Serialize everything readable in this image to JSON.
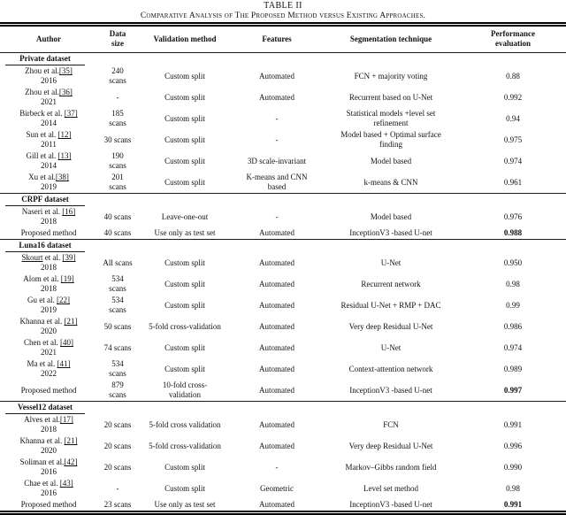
{
  "table": {
    "label": "TABLE II",
    "caption": "Comparative Analysis of The Proposed Method versus Existing Approaches.",
    "columns": [
      "Author",
      "Data\nsize",
      "Validation method",
      "Features",
      "Segmentation technique",
      "Performance\nevaluation"
    ],
    "sections": [
      {
        "name": "Private dataset",
        "rows": [
          {
            "author_parts": [
              {
                "t": "Zhou et al.",
                "u": false
              },
              {
                "t": "[35]",
                "u": true
              }
            ],
            "year": "2016",
            "data_size": "240\nscans",
            "validation": "Custom split",
            "features": "Automated",
            "technique": "FCN + majority voting",
            "performance": "0.88",
            "perf_bold": false
          },
          {
            "author_parts": [
              {
                "t": "Zhou et al.",
                "u": false
              },
              {
                "t": "[36]",
                "u": true
              }
            ],
            "year": "2021",
            "data_size": "-",
            "validation": "Custom split",
            "features": "Automated",
            "technique": "Recurrent based on U-Net",
            "performance": "0.992",
            "perf_bold": false
          },
          {
            "author_parts": [
              {
                "t": "Birbeck et al. ",
                "u": false
              },
              {
                "t": "[37]",
                "u": true
              }
            ],
            "year": "2014",
            "data_size": "185\nscans",
            "validation": "Custom split",
            "features": "-",
            "technique": "Statistical models +level set\nrefinement",
            "performance": "0.94",
            "perf_bold": false
          },
          {
            "author_parts": [
              {
                "t": "Sun et al. ",
                "u": false
              },
              {
                "t": "[12]",
                "u": true
              }
            ],
            "year": "2011",
            "data_size": "30 scans",
            "validation": "Custom split",
            "features": "-",
            "technique": "Model based + Optimal surface\nfinding",
            "performance": "0.975",
            "perf_bold": false
          },
          {
            "author_parts": [
              {
                "t": "Gill et al. ",
                "u": false
              },
              {
                "t": "[13]",
                "u": true
              }
            ],
            "year": "2014",
            "data_size": "190\nscans",
            "validation": "Custom split",
            "features": "3D scale-invariant",
            "technique": "Model based",
            "performance": "0.974",
            "perf_bold": false
          },
          {
            "author_parts": [
              {
                "t": "Xu et al.",
                "u": false
              },
              {
                "t": "[38]",
                "u": true
              }
            ],
            "year": "2019",
            "data_size": "201\nscans",
            "validation": "Custom split",
            "features": "K-means and CNN\nbased",
            "technique": "k-means & CNN",
            "performance": "0.961",
            "perf_bold": false
          }
        ]
      },
      {
        "name": "CRPF dataset",
        "rows": [
          {
            "author_parts": [
              {
                "t": "Naseri et al. ",
                "u": false
              },
              {
                "t": "[16]",
                "u": true
              }
            ],
            "year": "2018",
            "data_size": "40 scans",
            "validation": "Leave-one-out",
            "features": "-",
            "technique": "Model based",
            "performance": "0.976",
            "perf_bold": false
          },
          {
            "author_parts": [
              {
                "t": "Proposed method",
                "u": false
              }
            ],
            "year": "",
            "data_size": "40 scans",
            "validation": "Use only as test set",
            "features": "Automated",
            "technique": "InceptionV3 -based U-net",
            "performance": "0.988",
            "perf_bold": true
          }
        ]
      },
      {
        "name": "Luna16 dataset",
        "rows": [
          {
            "author_parts": [
              {
                "t": "Skourt",
                "u": true
              },
              {
                "t": " et al. ",
                "u": false
              },
              {
                "t": "[39]",
                "u": true
              }
            ],
            "year": "2018",
            "data_size": "All scans",
            "validation": "Custom split",
            "features": "Automated",
            "technique": "U-Net",
            "performance": "0.950",
            "perf_bold": false
          },
          {
            "author_parts": [
              {
                "t": "Alom et al. ",
                "u": false
              },
              {
                "t": "[19]",
                "u": true
              }
            ],
            "year": "2018",
            "data_size": "534\nscans",
            "validation": "Custom split",
            "features": "Automated",
            "technique": "Recurrent network",
            "performance": "0.98",
            "perf_bold": false
          },
          {
            "author_parts": [
              {
                "t": "Gu et al. ",
                "u": false
              },
              {
                "t": "[22]",
                "u": true
              }
            ],
            "year": "2019",
            "data_size": "534\nscans",
            "validation": "Custom split",
            "features": "Automated",
            "technique": "Residual U-Net + RMP + DAC",
            "performance": "0.99",
            "perf_bold": false
          },
          {
            "author_parts": [
              {
                "t": "Khanna et al. ",
                "u": false
              },
              {
                "t": "[21]",
                "u": true
              }
            ],
            "year": "2020",
            "data_size": "50 scans",
            "validation": "5-fold cross-validation",
            "features": "Automated",
            "technique": "Very deep Residual U-Net",
            "performance": "0.986",
            "perf_bold": false
          },
          {
            "author_parts": [
              {
                "t": "Chen et al. ",
                "u": false
              },
              {
                "t": "[40]",
                "u": true
              }
            ],
            "year": "2021",
            "data_size": "74 scans",
            "validation": "Custom split",
            "features": "Automated",
            "technique": "U-Net",
            "performance": "0.974",
            "perf_bold": false
          },
          {
            "author_parts": [
              {
                "t": "Ma et al. ",
                "u": false
              },
              {
                "t": "[41]",
                "u": true
              }
            ],
            "year": "2022",
            "data_size": "534\nscans",
            "validation": "Custom split",
            "features": "Automated",
            "technique": "Context-attention network",
            "performance": "0.989",
            "perf_bold": false
          },
          {
            "author_parts": [
              {
                "t": "Proposed method",
                "u": false
              }
            ],
            "year": "",
            "data_size": "879\nscans",
            "validation": "10-fold cross-\nvalidation",
            "features": "Automated",
            "technique": "InceptionV3 -based U-net",
            "performance": "0.997",
            "perf_bold": true
          }
        ]
      },
      {
        "name": "Vessel12 dataset",
        "rows": [
          {
            "author_parts": [
              {
                "t": "Alves et al.",
                "u": false
              },
              {
                "t": "[17]",
                "u": true
              }
            ],
            "year": "2018",
            "data_size": "20 scans",
            "validation": "5-fold cross validation",
            "features": "Automated",
            "technique": "FCN",
            "performance": "0.991",
            "perf_bold": false
          },
          {
            "author_parts": [
              {
                "t": "Khanna et al. ",
                "u": false
              },
              {
                "t": "[21]",
                "u": true
              }
            ],
            "year": "2020",
            "data_size": "20 scans",
            "validation": "5-fold cross-validation",
            "features": "Automated",
            "technique": "Very deep Residual U-Net",
            "performance": "0.996",
            "perf_bold": false
          },
          {
            "author_parts": [
              {
                "t": "Soliman et al.",
                "u": false
              },
              {
                "t": "[42]",
                "u": true
              }
            ],
            "year": "2016",
            "data_size": "20 scans",
            "validation": "Custom split",
            "features": "-",
            "technique": "Markov–Gibbs random field",
            "performance": "0.990",
            "perf_bold": false
          },
          {
            "author_parts": [
              {
                "t": "Chae et al. ",
                "u": false
              },
              {
                "t": "[43]",
                "u": true
              }
            ],
            "year": "2016",
            "data_size": "-",
            "validation": "Custom split",
            "features": "Geometric",
            "technique": "Level set method",
            "performance": "0.98",
            "perf_bold": false
          },
          {
            "author_parts": [
              {
                "t": "Proposed method",
                "u": false
              }
            ],
            "year": "",
            "data_size": "23 scans",
            "validation": "Use only as test set",
            "features": "Automated",
            "technique": "InceptionV3 -based U-net",
            "performance": "0.991",
            "perf_bold": true
          }
        ]
      }
    ]
  }
}
